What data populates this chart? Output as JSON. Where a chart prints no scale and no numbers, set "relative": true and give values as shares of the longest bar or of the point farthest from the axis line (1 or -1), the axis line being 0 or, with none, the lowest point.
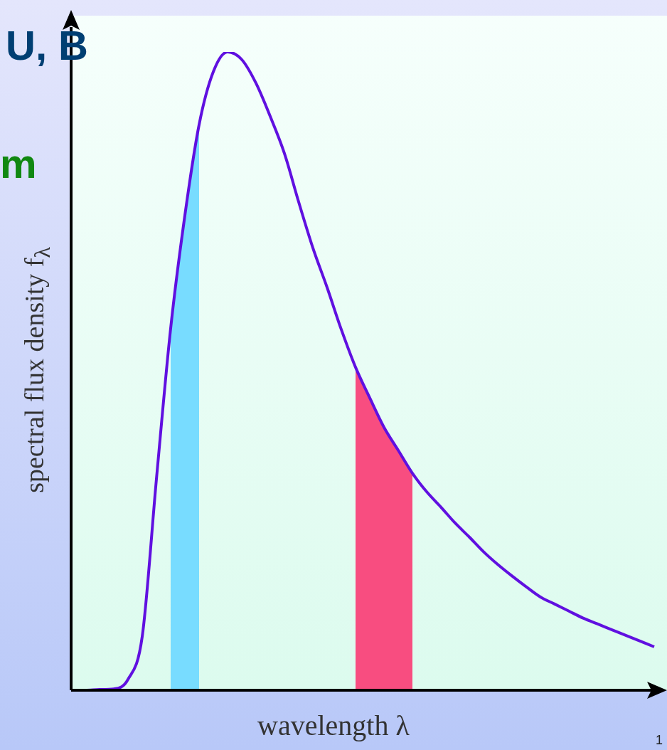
{
  "chart_data": {
    "type": "line",
    "relative": true,
    "xlabel": "wavelength λ",
    "ylabel": "spectral flux density f$_{λ}$",
    "annotations": [
      "U, B",
      "m",
      "1"
    ],
    "categories": [
      null,
      null,
      null,
      null,
      null,
      null,
      null,
      null,
      null,
      null,
      null,
      null,
      null,
      null,
      null,
      null,
      null,
      null,
      null,
      null,
      null,
      null,
      null,
      null,
      null,
      null,
      null,
      null,
      null,
      null,
      null,
      null,
      null,
      null,
      null,
      null,
      null,
      null,
      null,
      null,
      null,
      null
    ],
    "series": [
      {
        "type": "area",
        "color": "#78dcff",
        "values": [
          null,
          null,
          null,
          null,
          null,
          null,
          null,
          0.567,
          0.744,
          0.886,
          null,
          null,
          null,
          null,
          null,
          null,
          null,
          null,
          null,
          null,
          null,
          null,
          null,
          null,
          null,
          null,
          null,
          null,
          null,
          null,
          null,
          null,
          null,
          null,
          null,
          null,
          null,
          null,
          null,
          null,
          null,
          null
        ]
      },
      {
        "type": "area",
        "color": "#f84d80",
        "values": [
          null,
          null,
          null,
          null,
          null,
          null,
          null,
          null,
          null,
          null,
          null,
          null,
          null,
          null,
          null,
          null,
          null,
          null,
          null,
          null,
          0.506,
          0.458,
          0.412,
          0.376,
          0.34,
          null,
          null,
          null,
          null,
          null,
          null,
          null,
          null,
          null,
          null,
          null,
          null,
          null,
          null,
          null,
          null,
          null
        ]
      },
      {
        "type": "line",
        "color": "#6010e0",
        "values": [
          0,
          0,
          0.001,
          0.002,
          0.017,
          0.084,
          0.331,
          0.567,
          0.744,
          0.886,
          0.969,
          1,
          0.988,
          0.951,
          0.899,
          0.841,
          0.765,
          0.693,
          0.631,
          0.565,
          0.506,
          0.458,
          0.412,
          0.376,
          0.34,
          0.311,
          0.287,
          0.262,
          0.24,
          0.217,
          0.197,
          0.179,
          0.162,
          0.146,
          0.135,
          0.124,
          0.113,
          0.104,
          0.095,
          0.086,
          0.077,
          0.068
        ]
      }
    ],
    "legend": false,
    "marker": "none"
  }
}
